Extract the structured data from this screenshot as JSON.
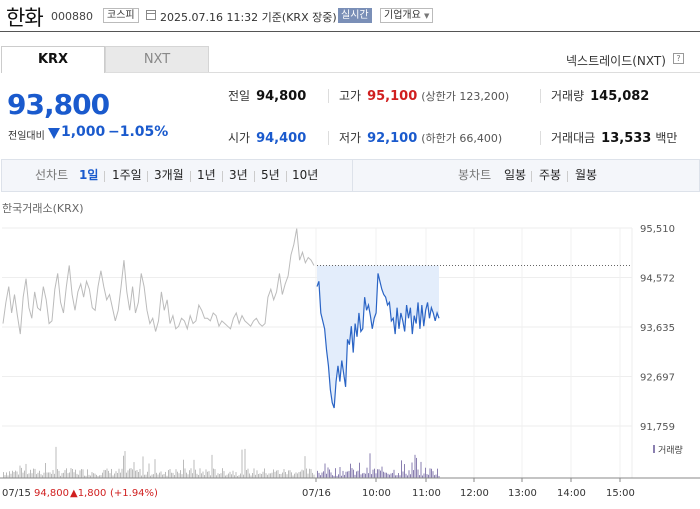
{
  "header": {
    "stock_name": "한화",
    "stock_code": "000880",
    "market": "코스피",
    "timestamp": "2025.07.16 11:32 기준(KRX 장중)",
    "realtime_label": "실시간",
    "company_overview_label": "기업개요"
  },
  "tabs": [
    {
      "label": "KRX",
      "active": true
    },
    {
      "label": "NXT",
      "active": false
    }
  ],
  "nextrade_link": "넥스트레이드(NXT)",
  "help_label": "?",
  "quote": {
    "price": "93,800",
    "change_label": "전일대비",
    "change": "1,000",
    "change_pct": "−1.05%",
    "direction": "down"
  },
  "stats": {
    "prev_close_label": "전일",
    "prev_close": "94,800",
    "high_label": "고가",
    "high": "95,100",
    "upper_limit": "(상한가 123,200)",
    "volume_label": "거래량",
    "volume": "145,082",
    "open_label": "시가",
    "open": "94,400",
    "low_label": "저가",
    "low": "92,100",
    "lower_limit": "(하한가 66,400)",
    "value_label": "거래대금",
    "value": "13,533",
    "value_unit": "백만"
  },
  "period_bar": {
    "line_chart_label": "선차트",
    "periods": [
      "1일",
      "1주일",
      "3개월",
      "1년",
      "3년",
      "5년",
      "10년"
    ],
    "selected": "1일",
    "candle_chart_label": "봉차트",
    "candle_periods": [
      "일봉",
      "주봉",
      "월봉"
    ]
  },
  "chart_data": {
    "type": "line",
    "exchange_label": "한국거래소(KRX)",
    "y_ticks": [
      "95,510",
      "94,572",
      "93,635",
      "92,697",
      "91,759"
    ],
    "ylim": [
      91759,
      95510
    ],
    "prev_close_ref": 94800,
    "x_ticks": [
      "07/16",
      "10:00",
      "11:00",
      "12:00",
      "13:00",
      "14:00",
      "15:00"
    ],
    "volume_legend": "거래량",
    "footer": {
      "date": "07/15",
      "close": "94,800",
      "change": "▲1,800",
      "pct": "(+1.94%)"
    },
    "prev_day_series": [
      93700,
      94100,
      94400,
      93900,
      94250,
      93850,
      93500,
      94200,
      94550,
      94000,
      93800,
      94300,
      94000,
      93950,
      94400,
      94150,
      93700,
      93750,
      94350,
      94650,
      94100,
      93900,
      94400,
      94800,
      94250,
      93950,
      94300,
      94450,
      94200,
      94500,
      94350,
      94000,
      93950,
      94400,
      94700,
      94400,
      94150,
      94250,
      94000,
      93750,
      93950,
      94400,
      94900,
      94300,
      93950,
      94400,
      93900,
      94100,
      94650,
      94400,
      93950,
      93700,
      93800,
      93550,
      93750,
      94300,
      93950,
      94150,
      93700,
      93850,
      93600,
      93650,
      93800,
      93750,
      93600,
      93850,
      93700,
      93750,
      94050,
      93950,
      93800,
      93800,
      93750,
      93900,
      93850,
      93650,
      93750,
      93700,
      93650,
      93600,
      93800,
      93900,
      93700,
      93850,
      93750,
      93700,
      93650,
      93750,
      93800,
      93700,
      93650,
      93700,
      94200,
      94350,
      94150,
      94300,
      94650,
      94250,
      94450,
      94600,
      95000,
      95200,
      95500,
      94900,
      95050,
      94850,
      94950,
      94900,
      94800
    ],
    "today_series": [
      94400,
      94500,
      93900,
      93750,
      93600,
      93200,
      92900,
      92450,
      92200,
      92100,
      92600,
      92900,
      92600,
      93000,
      92750,
      92500,
      93400,
      93300,
      93650,
      93150,
      93700,
      93450,
      93900,
      93550,
      93600,
      94200,
      93950,
      94050,
      93850,
      93600,
      93800,
      93900,
      94650,
      94500,
      94350,
      94250,
      94200,
      94050,
      94100,
      93750,
      93800,
      93500,
      94000,
      93600,
      93900,
      93750,
      93550,
      94050,
      93800,
      94000,
      93500,
      93850,
      93700,
      94100,
      93600,
      94050,
      93650,
      93950,
      94100,
      93800,
      94000,
      93900,
      93750,
      93900,
      93800
    ]
  }
}
